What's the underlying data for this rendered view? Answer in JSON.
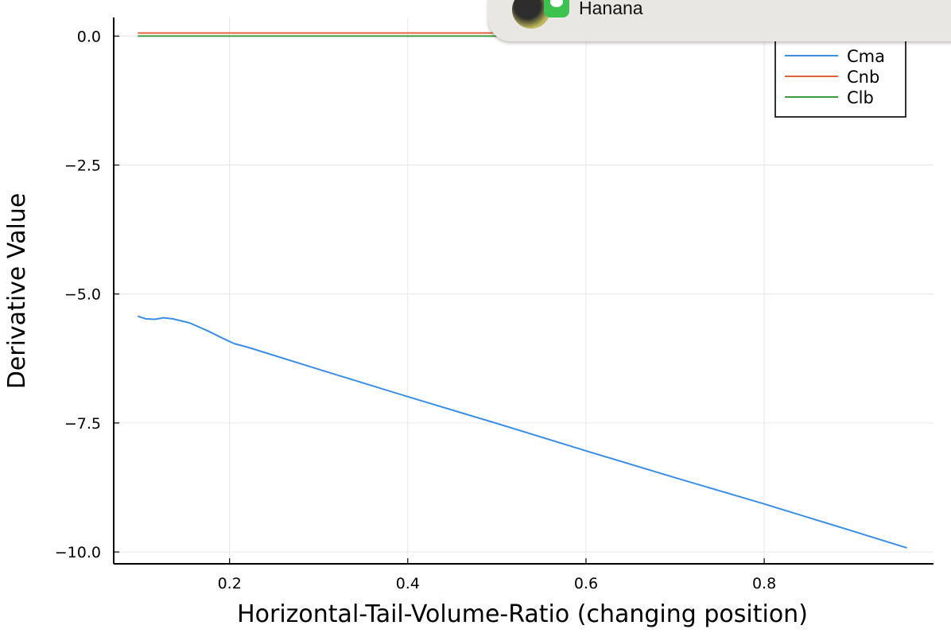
{
  "chart_data": {
    "type": "line",
    "title": "",
    "xlabel": "Horizontal-Tail-Volume-Ratio (changing position)",
    "ylabel": "Derivative Value",
    "xlim": [
      0.07,
      0.99
    ],
    "ylim": [
      -10.23,
      0.36
    ],
    "xticks": [
      0.2,
      0.4,
      0.6,
      0.8
    ],
    "xtick_labels": [
      "0.2",
      "0.4",
      "0.6",
      "0.8"
    ],
    "yticks": [
      0.0,
      -2.5,
      -5.0,
      -7.5,
      -10.0
    ],
    "ytick_labels": [
      "0.0",
      "−2.5",
      "−5.0",
      "−7.5",
      "−10.0"
    ],
    "grid": true,
    "legend_position": "top-right",
    "series": [
      {
        "name": "Cma",
        "color": "#3b8ee5",
        "x": [
          0.097,
          0.106,
          0.116,
          0.126,
          0.136,
          0.155,
          0.175,
          0.195,
          0.205,
          0.22,
          0.3,
          0.4,
          0.5,
          0.6,
          0.7,
          0.8,
          0.9,
          0.96
        ],
        "y": [
          -5.43,
          -5.48,
          -5.49,
          -5.46,
          -5.48,
          -5.56,
          -5.71,
          -5.88,
          -5.96,
          -6.03,
          -6.46,
          -6.99,
          -7.51,
          -8.04,
          -8.56,
          -9.07,
          -9.6,
          -9.92
        ]
      },
      {
        "name": "Cnb",
        "color": "#e0623f",
        "x": [
          0.097,
          0.96
        ],
        "y": [
          0.06,
          0.06
        ]
      },
      {
        "name": "Clb",
        "color": "#3d9a3d",
        "x": [
          0.097,
          0.96
        ],
        "y": [
          0.0,
          0.0
        ]
      }
    ]
  },
  "notification": {
    "sender": "Hanana",
    "app_icon": "messages-icon"
  }
}
